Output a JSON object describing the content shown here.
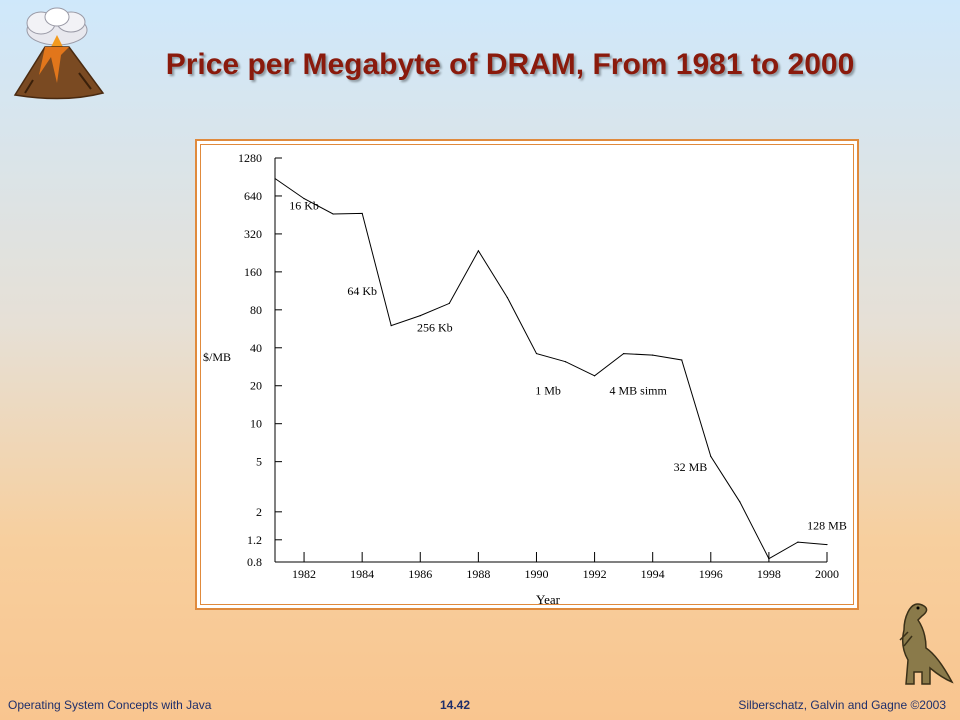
{
  "slide": {
    "title": "Price per Megabyte of DRAM, From 1981 to 2000",
    "footer_left": "Operating System Concepts with Java",
    "footer_center": "14.42",
    "footer_right": "Silberschatz, Galvin and Gagne ©2003",
    "decor_left": "volcano-cloud-illustration",
    "decor_right": "dinosaur-illustration"
  },
  "chart_data": {
    "type": "line",
    "title": "",
    "xlabel": "Year",
    "ylabel": "$/MB",
    "y_scale": "log",
    "xlim": [
      1981,
      2000
    ],
    "ylim": [
      0.8,
      1280
    ],
    "grid": false,
    "x_ticks": [
      1982,
      1984,
      1986,
      1988,
      1990,
      1992,
      1994,
      1996,
      1998,
      2000
    ],
    "y_ticks": [
      1280,
      640,
      320,
      160,
      80,
      40,
      20,
      10,
      5,
      2,
      1.2,
      0.8
    ],
    "line_color": "#000000",
    "series": [
      {
        "x": [
          1981,
          1982,
          1983,
          1984,
          1985,
          1986,
          1987,
          1988,
          1989,
          1990,
          1991,
          1992,
          1993,
          1994,
          1995,
          1996,
          1997,
          1998,
          1999,
          2000
        ],
        "y": [
          880,
          610,
          460,
          465,
          60,
          72,
          90,
          235,
          100,
          36,
          31,
          24,
          36,
          35,
          32,
          5.5,
          2.4,
          0.85,
          1.15,
          1.1
        ]
      }
    ],
    "annotations": [
      {
        "text": "16 Kb",
        "x": 1982,
        "y": 500
      },
      {
        "text": "64 Kb",
        "x": 1984,
        "y": 105
      },
      {
        "text": "256 Kb",
        "x": 1986.5,
        "y": 54
      },
      {
        "text": "1 Mb",
        "x": 1990.4,
        "y": 17
      },
      {
        "text": "4 MB simm",
        "x": 1993.5,
        "y": 17
      },
      {
        "text": "32 MB",
        "x": 1995.3,
        "y": 4.2
      },
      {
        "text": "128 MB",
        "x": 2000,
        "y": 1.45
      }
    ]
  }
}
